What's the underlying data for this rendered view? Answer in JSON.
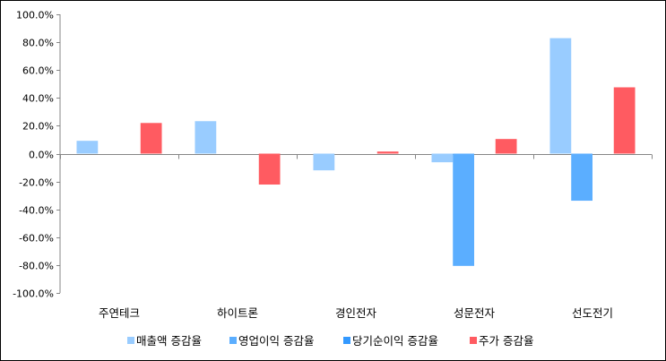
{
  "chart_data": {
    "type": "bar",
    "title": "",
    "xlabel": "",
    "ylabel": "",
    "ylim": [
      -100,
      100
    ],
    "ytick_step": 20,
    "ytick_format": "percent-1dp",
    "grid": false,
    "legend_position": "bottom",
    "categories": [
      "주연테크",
      "하이트론",
      "경인전자",
      "성문전자",
      "선도전기"
    ],
    "series": [
      {
        "name": "매출액 증감율",
        "color": "#99CCFF",
        "values": [
          9.2,
          23.3,
          -12.0,
          -6.2,
          82.9
        ]
      },
      {
        "name": "영업이익 증감율",
        "color": "#5BAEFF",
        "values": [
          null,
          null,
          null,
          -80.6,
          -33.8
        ]
      },
      {
        "name": "당기순이익 증감율",
        "color": "#3399FF",
        "values": [
          null,
          null,
          null,
          null,
          null
        ]
      },
      {
        "name": "주가 증감율",
        "color": "#FF5B61",
        "values": [
          22.0,
          -22.2,
          1.5,
          10.5,
          47.6
        ]
      }
    ]
  }
}
